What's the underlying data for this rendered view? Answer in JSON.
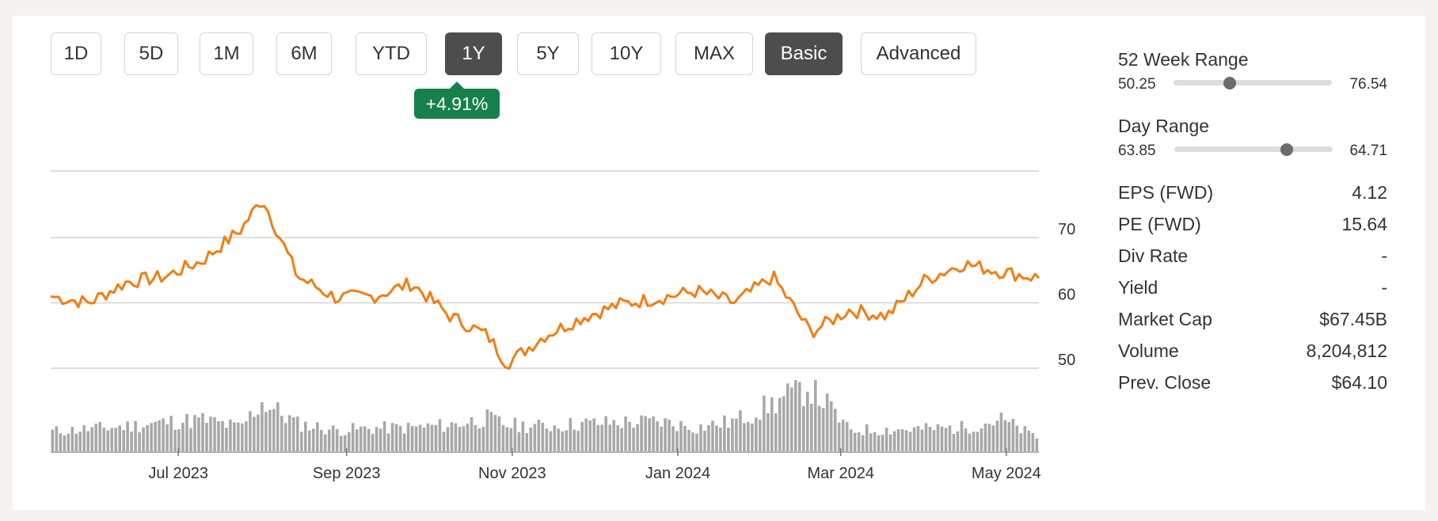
{
  "periods": [
    {
      "label": "1D",
      "active": false
    },
    {
      "label": "5D",
      "active": false
    },
    {
      "label": "1M",
      "active": false
    },
    {
      "label": "6M",
      "active": false
    },
    {
      "label": "YTD",
      "active": false
    },
    {
      "label": "1Y",
      "active": true
    },
    {
      "label": "5Y",
      "active": false
    },
    {
      "label": "10Y",
      "active": false
    },
    {
      "label": "MAX",
      "active": false
    }
  ],
  "modes": [
    {
      "label": "Basic",
      "active": true
    },
    {
      "label": "Advanced",
      "active": false
    }
  ],
  "change_badge": "+4.91%",
  "colors": {
    "line": "#f57c12",
    "volume": "#a8a8a8",
    "badge": "#16804a",
    "active_button": "#4d4d4d"
  },
  "stats": {
    "week52": {
      "title": "52 Week Range",
      "low": "50.25",
      "high": "76.54",
      "position": 0.355
    },
    "day": {
      "title": "Day Range",
      "low": "63.85",
      "high": "64.71",
      "position": 0.71
    },
    "rows": [
      {
        "label": "EPS (FWD)",
        "value": "4.12"
      },
      {
        "label": "PE (FWD)",
        "value": "15.64"
      },
      {
        "label": "Div Rate",
        "value": "-"
      },
      {
        "label": "Yield",
        "value": "-"
      },
      {
        "label": "Market Cap",
        "value": "$67.45B"
      },
      {
        "label": "Volume",
        "value": "8,204,812"
      },
      {
        "label": "Prev. Close",
        "value": "$64.10"
      }
    ]
  },
  "chart_data": {
    "type": "line",
    "x": [
      "2023-05-15",
      "2023-05-29",
      "2023-06-12",
      "2023-06-26",
      "2023-07-10",
      "2023-07-24",
      "2023-08-01",
      "2023-08-14",
      "2023-08-28",
      "2023-09-11",
      "2023-09-25",
      "2023-10-09",
      "2023-10-23",
      "2023-10-30",
      "2023-11-13",
      "2023-11-27",
      "2023-12-11",
      "2023-12-26",
      "2024-01-08",
      "2024-01-22",
      "2024-02-05",
      "2024-02-19",
      "2024-03-04",
      "2024-03-18",
      "2024-04-01",
      "2024-04-15",
      "2024-04-29",
      "2024-05-13"
    ],
    "series": [
      {
        "values": [
          61,
          60,
          63.2,
          64,
          66.5,
          71.2,
          76,
          64,
          60.8,
          61,
          63,
          58,
          55,
          50.7,
          55,
          57.8,
          59.8,
          60.8,
          61.8,
          60,
          64,
          55.5,
          58.9,
          58,
          63.5,
          66,
          64.8,
          63.8
        ]
      }
    ],
    "volume": [
      0.3,
      0.34,
      0.38,
      0.44,
      0.48,
      0.36,
      0.75,
      0.42,
      0.32,
      0.35,
      0.36,
      0.4,
      0.5,
      0.4,
      0.38,
      0.42,
      0.44,
      0.45,
      0.36,
      0.46,
      0.72,
      1.0,
      0.32,
      0.33,
      0.34,
      0.36,
      0.48,
      0.2
    ],
    "x_tick_labels": [
      "Jul 2023",
      "Sep 2023",
      "Nov 2023",
      "Jan 2024",
      "Mar 2024",
      "May 2024"
    ],
    "y_ticks": [
      50,
      60,
      70
    ],
    "ylim": [
      45,
      80
    ],
    "grid": true,
    "legend": "none"
  }
}
